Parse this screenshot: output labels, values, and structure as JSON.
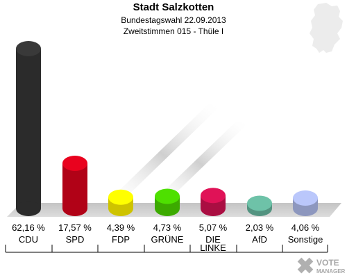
{
  "chart_data": {
    "type": "bar",
    "title": "Stadt Salzkotten",
    "subtitle": "Bundestagswahl 22.09.2013",
    "subtitle2": "Zweitstimmen 015 - Thüle I",
    "categories": [
      "CDU",
      "SPD",
      "FDP",
      "GRÜNE",
      "DIE LINKE",
      "AfD",
      "Sonstige"
    ],
    "values": [
      62.16,
      17.57,
      4.39,
      4.73,
      5.07,
      2.03,
      4.06
    ],
    "value_labels": [
      "62,16 %",
      "17,57 %",
      "4,39 %",
      "4,73 %",
      "5,07 %",
      "2,03 %",
      "4,06 %"
    ],
    "colors": [
      "#333333",
      "#d0021b",
      "#f2e500",
      "#46c800",
      "#c8104e",
      "#62ad96",
      "#a6b2e0"
    ],
    "ylim": [
      0,
      65
    ],
    "grid": false,
    "legend": "none"
  },
  "logo": {
    "line1": "VOTE",
    "line2": "MANAGER"
  }
}
